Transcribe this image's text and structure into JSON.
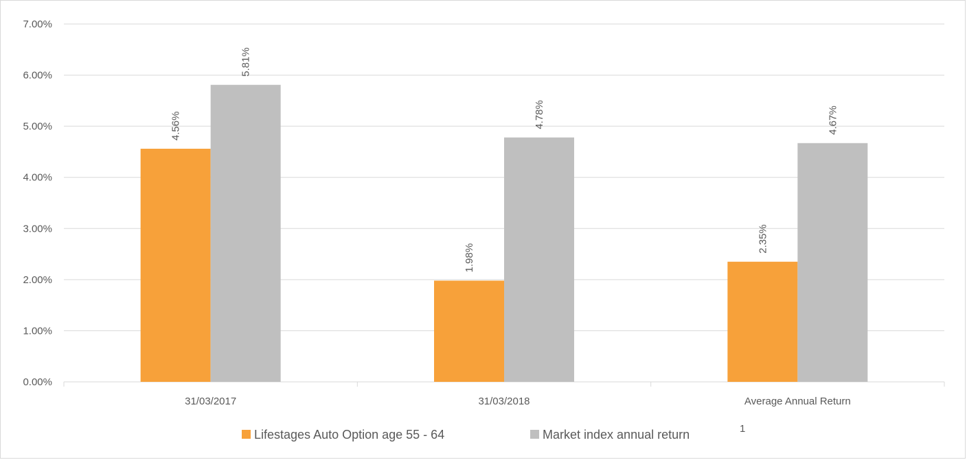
{
  "chart_data": {
    "type": "bar",
    "categories": [
      "31/03/2017",
      "31/03/2018",
      "Average Annual Return"
    ],
    "series": [
      {
        "name": "Lifestages Auto Option age 55 - 64",
        "values": [
          4.56,
          1.98,
          2.35
        ],
        "labels": [
          "4.56%",
          "1.98%",
          "2.35%"
        ],
        "color": "#f7a13a"
      },
      {
        "name": "Market index annual return",
        "values": [
          5.81,
          4.78,
          4.67
        ],
        "labels": [
          "5.81%",
          "4.78%",
          "4.67%"
        ],
        "color": "#bfbfbf"
      }
    ],
    "y_ticks": [
      "0.00%",
      "1.00%",
      "2.00%",
      "3.00%",
      "4.00%",
      "5.00%",
      "6.00%",
      "7.00%"
    ],
    "ylim": [
      0,
      7
    ],
    "legend_position": "bottom",
    "legend_note": "1",
    "grid": true,
    "colors": {
      "grid": "#d9d9d9",
      "text": "#595959"
    }
  }
}
